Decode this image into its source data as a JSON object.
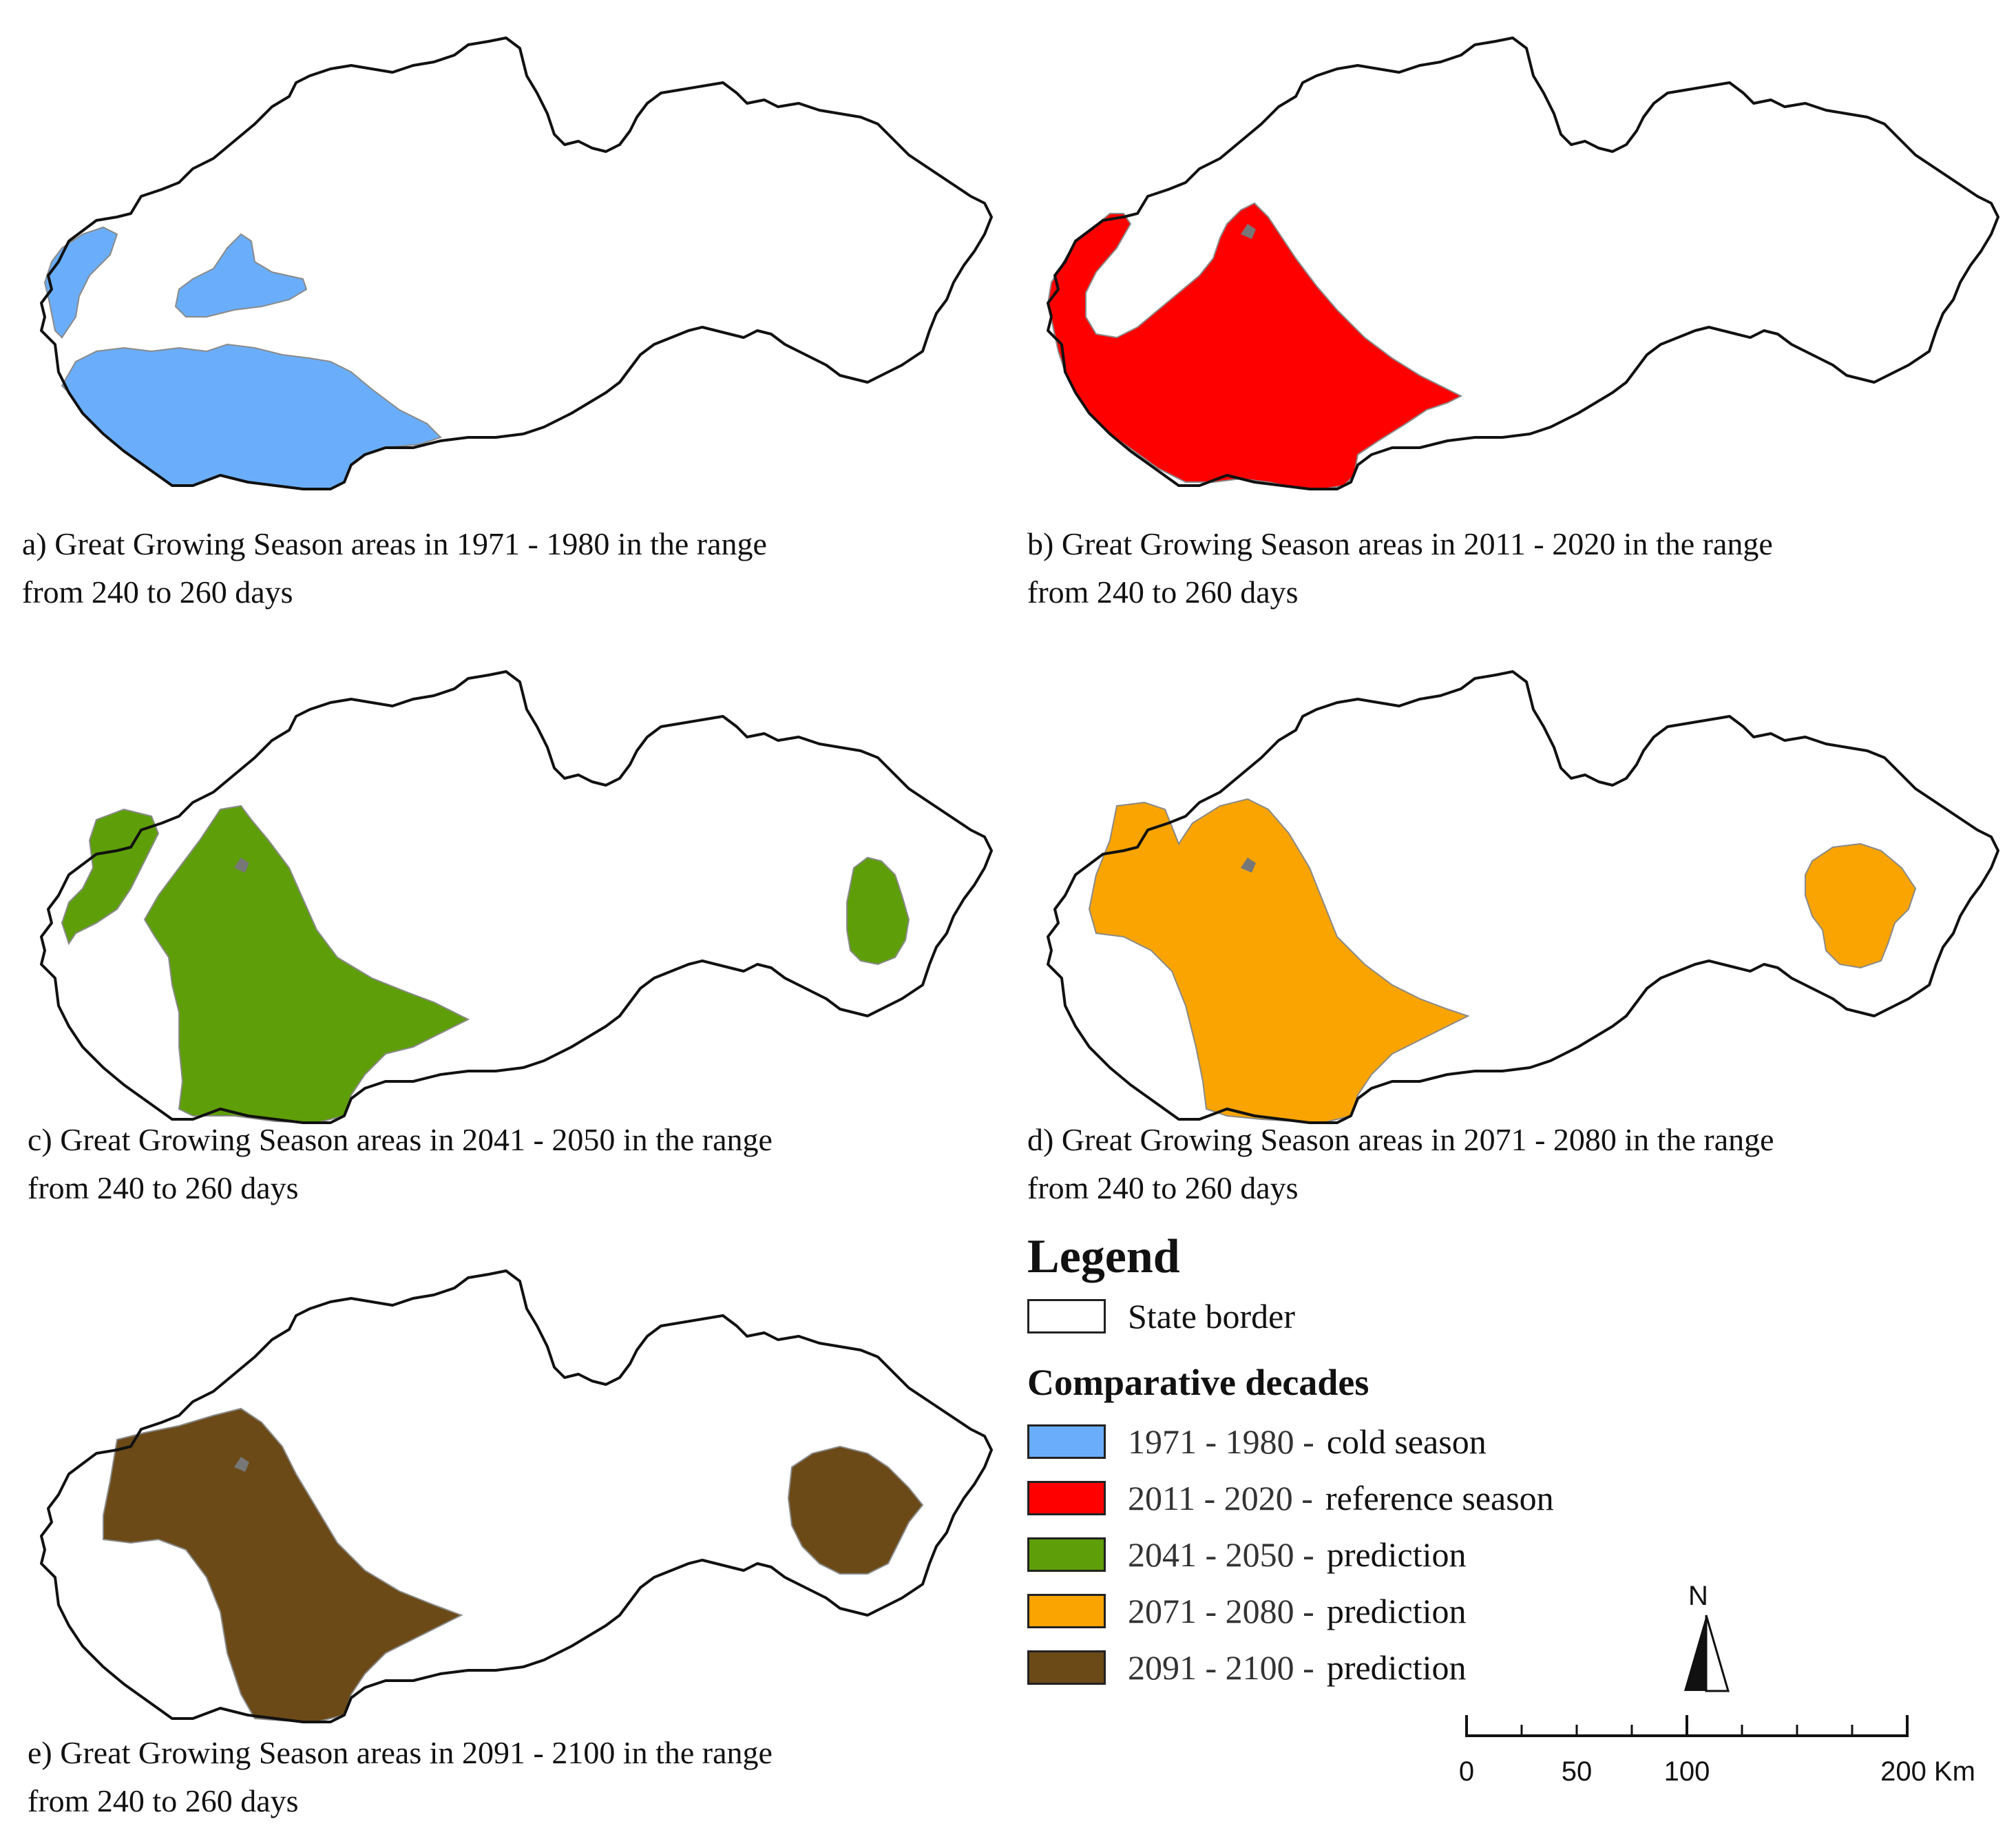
{
  "panels": [
    {
      "id": "a",
      "caption_line1": "a) Great Growing Season areas in 1971 - 1980 in the range",
      "caption_line2": "from 240 to 260 days",
      "color": "#6aaefb"
    },
    {
      "id": "b",
      "caption_line1": "b) Great Growing Season areas in 2011 - 2020 in the range",
      "caption_line2": "from 240 to 260 days",
      "color": "#ff0000"
    },
    {
      "id": "c",
      "caption_line1": "c) Great Growing Season areas in 2041 - 2050 in the range",
      "caption_line2": "from 240 to 260 days",
      "color": "#5e9e08"
    },
    {
      "id": "d",
      "caption_line1": "d) Great Growing Season areas in 2071 - 2080 in the range",
      "caption_line2": "from 240 to 260 days",
      "color": "#f9a400"
    },
    {
      "id": "e",
      "caption_line1": "e) Great Growing Season areas in 2091 - 2100 in the range",
      "caption_line2": "from 240 to 260 days",
      "color": "#6b4a18"
    }
  ],
  "legend": {
    "title": "Legend",
    "state_border": "State border",
    "subtitle": "Comparative decades",
    "items": [
      {
        "decade": "1971 - 1980 -",
        "label": "cold season",
        "color": "#6aaefb"
      },
      {
        "decade": "2011 - 2020 -",
        "label": "reference season",
        "color": "#ff0000"
      },
      {
        "decade": "2041 - 2050 -",
        "label": "prediction",
        "color": "#5e9e08"
      },
      {
        "decade": "2071 - 2080 -",
        "label": "prediction",
        "color": "#f9a400"
      },
      {
        "decade": "2091 - 2100 -",
        "label": "prediction",
        "color": "#6b4a18"
      }
    ]
  },
  "north_label": "N",
  "scale_labels": [
    "0",
    "50",
    "100",
    "200 Km"
  ]
}
